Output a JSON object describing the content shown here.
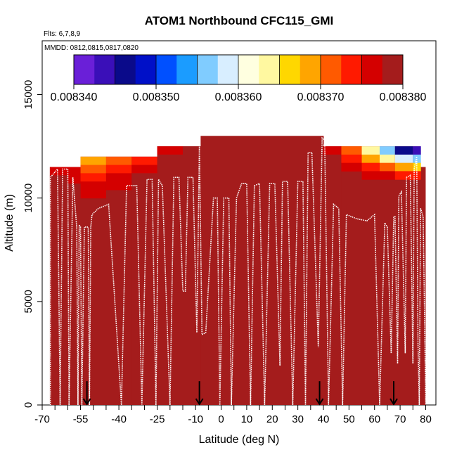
{
  "chart_data": {
    "type": "heatmap",
    "title": "ATOM1 Northbound CFC115_GMI",
    "flights_label": "Flts: 6,7,8,9",
    "mmdd_label": "MMDD: 0812,0815,0817,0820",
    "xlabel": "Latitude (deg N)",
    "ylabel": "Altitude (m)",
    "xlim": [
      -70,
      84
    ],
    "ylim": [
      0,
      17600
    ],
    "x_ticks": [
      -70,
      -55,
      -40,
      -25,
      -10,
      0,
      10,
      20,
      30,
      40,
      50,
      60,
      70,
      80
    ],
    "x_tick_labels": [
      "-70",
      "-55",
      "-40",
      "-25",
      "-10",
      "0",
      "10",
      "20",
      "30",
      "40",
      "50",
      "60",
      "70",
      "80"
    ],
    "x_ticks_unlabeled": [
      -65,
      -60,
      -50,
      -45,
      -35,
      -30,
      -20,
      -15,
      -5,
      5,
      15,
      25,
      35,
      45,
      55,
      65,
      75
    ],
    "y_ticks": [
      0,
      5000,
      10000,
      15000
    ],
    "y_tick_labels": [
      "0",
      "5000",
      "10000",
      "15000"
    ],
    "colorbar": {
      "min": 0.00834,
      "max": 0.00838,
      "tick_labels": [
        "0.008340",
        "0.008350",
        "0.008360",
        "0.008370",
        "0.008380"
      ],
      "colors": [
        "#6a1fd8",
        "#3a0fb8",
        "#0a0a8a",
        "#0010c8",
        "#0050ff",
        "#1b9cff",
        "#80ccff",
        "#d8eeff",
        "#ffffe0",
        "#fff8a0",
        "#ffd700",
        "#ffa500",
        "#ff5a00",
        "#ff1a00",
        "#d40000",
        "#a41c1c"
      ]
    },
    "background_value": 0.00838,
    "background_color": "#a41c1c",
    "upper_layer": {
      "description_free": true,
      "columns": [
        {
          "lat": -67,
          "top": 11500,
          "bands": [
            0.008376,
            0.008378,
            0.00838
          ]
        },
        {
          "lat": -60,
          "top": 11500,
          "bands": [
            0.008375,
            0.008377,
            0.00838
          ]
        },
        {
          "lat": -55,
          "top": 12000,
          "bands": [
            0.008369,
            0.008371,
            0.008373,
            0.008375,
            0.008377
          ]
        },
        {
          "lat": -45,
          "top": 12000,
          "bands": [
            0.008371,
            0.008373,
            0.008375,
            0.008377
          ]
        },
        {
          "lat": -35,
          "top": 12000,
          "bands": [
            0.008374,
            0.008376,
            0.008378
          ]
        },
        {
          "lat": -25,
          "top": 12500,
          "bands": [
            0.008377,
            0.008378,
            0.00838
          ]
        },
        {
          "lat": -15,
          "top": 12500,
          "bands": [
            0.008378,
            0.00838
          ]
        },
        {
          "lat": -8,
          "top": 13000,
          "bands": [
            0.00838
          ]
        },
        {
          "lat": 40,
          "top": 12500,
          "bands": [
            0.008376,
            0.008378,
            0.00838
          ]
        },
        {
          "lat": 47,
          "top": 12500,
          "bands": [
            0.008371,
            0.008374,
            0.008377
          ]
        },
        {
          "lat": 55,
          "top": 12500,
          "bands": [
            0.008364,
            0.008369,
            0.008373,
            0.008376
          ]
        },
        {
          "lat": 62,
          "top": 12500,
          "bands": [
            0.008356,
            0.008364,
            0.00837,
            0.008375
          ]
        },
        {
          "lat": 68,
          "top": 12500,
          "bands": [
            0.008347,
            0.008358,
            0.008368,
            0.008374
          ]
        },
        {
          "lat": 75,
          "top": 12500,
          "bands": [
            0.008344,
            0.008356,
            0.008366,
            0.008373
          ]
        }
      ]
    },
    "flight_track": {
      "series_name": "flight track",
      "points": [
        [
          -66.8,
          0
        ],
        [
          -66.8,
          11000
        ],
        [
          -64,
          11400
        ],
        [
          -63,
          0
        ],
        [
          -62,
          11400
        ],
        [
          -60,
          11400
        ],
        [
          -59.5,
          0
        ],
        [
          -58,
          11000
        ],
        [
          -56.5,
          8600
        ],
        [
          -56,
          0
        ],
        [
          -55.5,
          8700
        ],
        [
          -55,
          8600
        ],
        [
          -54.5,
          0
        ],
        [
          -53.5,
          8600
        ],
        [
          -52,
          8600
        ],
        [
          -51.5,
          0
        ],
        [
          -51,
          8600
        ],
        [
          -50.5,
          9200
        ],
        [
          -48,
          9500
        ],
        [
          -44,
          9700
        ],
        [
          -39,
          0
        ],
        [
          -37,
          10600
        ],
        [
          -33,
          10600
        ],
        [
          -31,
          0
        ],
        [
          -29,
          10900
        ],
        [
          -27,
          10900
        ],
        [
          -25.5,
          0
        ],
        [
          -24.5,
          10900
        ],
        [
          -23,
          10600
        ],
        [
          -20,
          0
        ],
        [
          -18.5,
          11000
        ],
        [
          -16.5,
          11000
        ],
        [
          -15,
          5500
        ],
        [
          -14,
          5500
        ],
        [
          -13,
          11000
        ],
        [
          -11,
          11000
        ],
        [
          -9.5,
          3500
        ],
        [
          -8.5,
          12500
        ],
        [
          -7.5,
          3400
        ],
        [
          -6,
          3500
        ],
        [
          -3,
          10000
        ],
        [
          -1.5,
          10000
        ],
        [
          -0.5,
          0
        ],
        [
          1,
          10000
        ],
        [
          3,
          10000
        ],
        [
          4,
          0
        ],
        [
          6,
          10000
        ],
        [
          8,
          10700
        ],
        [
          10,
          10700
        ],
        [
          11.5,
          0
        ],
        [
          13,
          10600
        ],
        [
          15,
          10700
        ],
        [
          17,
          0
        ],
        [
          19,
          10700
        ],
        [
          21,
          10700
        ],
        [
          23,
          1900
        ],
        [
          24,
          10800
        ],
        [
          26,
          10800
        ],
        [
          28,
          0
        ],
        [
          30,
          10800
        ],
        [
          32,
          10800
        ],
        [
          33,
          0
        ],
        [
          34,
          12200
        ],
        [
          35.5,
          12200
        ],
        [
          38,
          2800
        ],
        [
          39.5,
          12900
        ],
        [
          40.5,
          12800
        ],
        [
          42,
          0
        ],
        [
          44,
          9700
        ],
        [
          46,
          9500
        ],
        [
          47.5,
          0
        ],
        [
          49,
          9200
        ],
        [
          53,
          9000
        ],
        [
          57,
          8900
        ],
        [
          60,
          9200
        ],
        [
          62,
          0
        ],
        [
          64,
          8800
        ],
        [
          65,
          8600
        ],
        [
          66.5,
          2500
        ],
        [
          67.5,
          9100
        ],
        [
          68,
          9100
        ],
        [
          69,
          2000
        ],
        [
          69.5,
          10100
        ],
        [
          70.5,
          10300
        ],
        [
          72,
          2500
        ],
        [
          72.5,
          11000
        ],
        [
          74,
          11100
        ],
        [
          75,
          2000
        ],
        [
          75.5,
          11400
        ],
        [
          76.5,
          12000
        ],
        [
          77,
          3000
        ],
        [
          77.5,
          0
        ],
        [
          78,
          9500
        ],
        [
          79,
          9100
        ],
        [
          79.5,
          5000
        ],
        [
          80,
          0
        ]
      ]
    },
    "flight_starts": [
      -52.5,
      -8.5,
      38.5,
      67.5
    ]
  }
}
